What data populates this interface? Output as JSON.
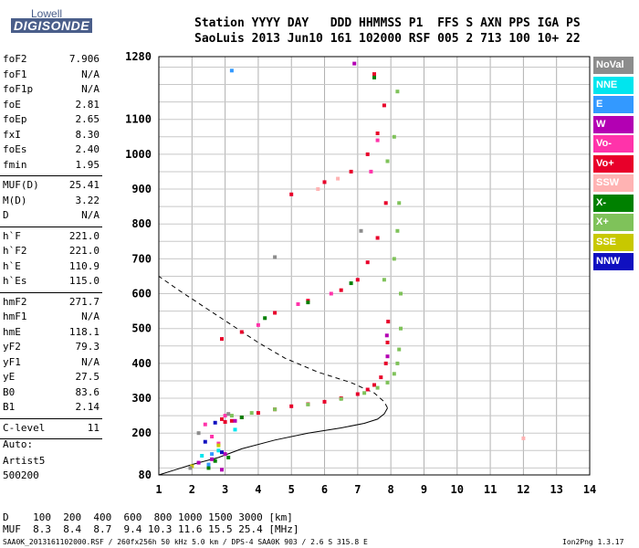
{
  "logo": {
    "line1": "Lowell",
    "line2": "DIGISONDE"
  },
  "header": {
    "line1": "Station YYYY DAY   DDD HHMMSS P1  FFS S AXN PPS IGA PS",
    "line2": "SaoLuis 2013 Jun10 161 102000 RSF 005 2 713 100 10+ 22"
  },
  "params_group1": [
    {
      "k": "foF2",
      "v": "7.906"
    },
    {
      "k": "foF1",
      "v": "N/A"
    },
    {
      "k": "foF1p",
      "v": "N/A"
    },
    {
      "k": "foE",
      "v": "2.81"
    },
    {
      "k": "foEp",
      "v": "2.65"
    },
    {
      "k": "fxI",
      "v": "8.30"
    },
    {
      "k": "foEs",
      "v": "2.40"
    },
    {
      "k": "fmin",
      "v": "1.95"
    }
  ],
  "params_group2": [
    {
      "k": "MUF(D)",
      "v": "25.41"
    },
    {
      "k": "M(D)",
      "v": "3.22"
    },
    {
      "k": "D",
      "v": "N/A"
    }
  ],
  "params_group3": [
    {
      "k": "h`F",
      "v": "221.0"
    },
    {
      "k": "h`F2",
      "v": "221.0"
    },
    {
      "k": "h`E",
      "v": "110.9"
    },
    {
      "k": "h`Es",
      "v": "115.0"
    }
  ],
  "params_group4": [
    {
      "k": "hmF2",
      "v": "271.7"
    },
    {
      "k": "hmF1",
      "v": "N/A"
    },
    {
      "k": "hmE",
      "v": "118.1"
    },
    {
      "k": "yF2",
      "v": "79.3"
    },
    {
      "k": "yF1",
      "v": "N/A"
    },
    {
      "k": "yE",
      "v": "27.5"
    },
    {
      "k": "B0",
      "v": "83.6"
    },
    {
      "k": "B1",
      "v": "2.14"
    }
  ],
  "params_group5": [
    {
      "k": "C-level",
      "v": "11"
    }
  ],
  "left_footer": {
    "auto": "Auto:",
    "artist": "Artist5",
    "version": "500200"
  },
  "muf_table": {
    "line1": "D    100  200  400  600  800 1000 1500 3000 [km]",
    "line2": "MUF  8.3  8.4  8.7  9.4 10.3 11.6 15.5 25.4 [MHz]"
  },
  "footer": {
    "left": "SAA0K_2013161102000.RSF / 260fx256h 50 kHz 5.0 km / DPS-4 SAA0K 903 / 2.6 S 315.8 E",
    "right": "Ion2Png 1.3.17"
  },
  "legend": [
    {
      "label": "NoVal",
      "color": "#8c8c8c"
    },
    {
      "label": "NNE",
      "color": "#00e5ee"
    },
    {
      "label": "E",
      "color": "#3399ff"
    },
    {
      "label": "W",
      "color": "#b300b3"
    },
    {
      "label": "Vo-",
      "color": "#ff33aa"
    },
    {
      "label": "Vo+",
      "color": "#e8002a"
    },
    {
      "label": "SSW",
      "color": "#ffb3b3"
    },
    {
      "label": "X-",
      "color": "#008000"
    },
    {
      "label": "X+",
      "color": "#7fc25a"
    },
    {
      "label": "SSE",
      "color": "#c8c800"
    },
    {
      "label": "NNW",
      "color": "#1010c0"
    }
  ],
  "chart_data": {
    "type": "scatter",
    "title": "",
    "xlabel": "",
    "ylabel": "",
    "xlim": [
      1,
      14
    ],
    "ylim": [
      80,
      1280
    ],
    "x_ticks": [
      1,
      2,
      3,
      4,
      5,
      6,
      7,
      8,
      9,
      10,
      11,
      12,
      13,
      14
    ],
    "y_ticks": [
      80,
      200,
      300,
      400,
      500,
      600,
      700,
      800,
      900,
      1000,
      1100,
      1280
    ],
    "grid": true,
    "series": [
      {
        "name": "Vo+",
        "color": "#e8002a",
        "points": [
          [
            2.9,
            240
          ],
          [
            3.0,
            232
          ],
          [
            3.2,
            235
          ],
          [
            3.5,
            245
          ],
          [
            4.0,
            258
          ],
          [
            4.5,
            268
          ],
          [
            5.0,
            277
          ],
          [
            5.5,
            283
          ],
          [
            6.0,
            290
          ],
          [
            6.5,
            300
          ],
          [
            7.0,
            312
          ],
          [
            7.3,
            325
          ],
          [
            7.5,
            338
          ],
          [
            7.7,
            360
          ],
          [
            7.85,
            400
          ],
          [
            7.9,
            460
          ],
          [
            7.92,
            520
          ],
          [
            2.9,
            470
          ],
          [
            3.5,
            490
          ],
          [
            4.5,
            545
          ],
          [
            5.5,
            580
          ],
          [
            6.5,
            610
          ],
          [
            7.0,
            640
          ],
          [
            7.3,
            690
          ],
          [
            7.6,
            760
          ],
          [
            7.85,
            860
          ],
          [
            5.0,
            885
          ],
          [
            6.0,
            920
          ],
          [
            6.8,
            950
          ],
          [
            7.3,
            1000
          ],
          [
            7.6,
            1060
          ],
          [
            7.8,
            1140
          ],
          [
            7.5,
            1230
          ]
        ]
      },
      {
        "name": "X+",
        "color": "#7fc25a",
        "points": [
          [
            3.2,
            250
          ],
          [
            3.8,
            258
          ],
          [
            4.5,
            268
          ],
          [
            5.5,
            282
          ],
          [
            6.5,
            298
          ],
          [
            7.2,
            315
          ],
          [
            7.6,
            330
          ],
          [
            7.9,
            345
          ],
          [
            8.1,
            370
          ],
          [
            8.2,
            400
          ],
          [
            8.25,
            440
          ],
          [
            8.3,
            500
          ],
          [
            8.3,
            600
          ],
          [
            7.8,
            640
          ],
          [
            8.1,
            700
          ],
          [
            8.2,
            780
          ],
          [
            8.25,
            860
          ],
          [
            7.9,
            980
          ],
          [
            8.1,
            1050
          ],
          [
            8.2,
            1180
          ]
        ]
      },
      {
        "name": "Vo-",
        "color": "#ff33aa",
        "points": [
          [
            2.4,
            225
          ],
          [
            2.6,
            190
          ],
          [
            2.8,
            170
          ],
          [
            3.0,
            250
          ],
          [
            4.0,
            510
          ],
          [
            5.2,
            570
          ],
          [
            6.2,
            600
          ],
          [
            7.4,
            950
          ],
          [
            7.6,
            1040
          ]
        ]
      },
      {
        "name": "X-",
        "color": "#008000",
        "points": [
          [
            2.5,
            100
          ],
          [
            2.7,
            120
          ],
          [
            3.1,
            130
          ],
          [
            3.5,
            245
          ],
          [
            4.2,
            530
          ],
          [
            5.5,
            575
          ],
          [
            6.8,
            630
          ],
          [
            7.5,
            1220
          ]
        ]
      },
      {
        "name": "W",
        "color": "#b300b3",
        "points": [
          [
            2.2,
            115
          ],
          [
            2.6,
            125
          ],
          [
            2.9,
            95
          ],
          [
            3.0,
            140
          ],
          [
            3.3,
            235
          ],
          [
            7.9,
            420
          ],
          [
            7.88,
            480
          ],
          [
            6.9,
            1260
          ]
        ]
      },
      {
        "name": "NNE",
        "color": "#00e5ee",
        "points": [
          [
            2.3,
            135
          ],
          [
            2.8,
            150
          ],
          [
            3.3,
            210
          ]
        ]
      },
      {
        "name": "E",
        "color": "#3399ff",
        "points": [
          [
            2.5,
            110
          ],
          [
            3.2,
            1240
          ],
          [
            2.6,
            140
          ]
        ]
      },
      {
        "name": "SSE",
        "color": "#c8c800",
        "points": [
          [
            2.0,
            105
          ],
          [
            2.8,
            165
          ]
        ]
      },
      {
        "name": "NNW",
        "color": "#1010c0",
        "points": [
          [
            2.4,
            175
          ],
          [
            2.9,
            145
          ],
          [
            2.7,
            230
          ]
        ]
      },
      {
        "name": "NoVal",
        "color": "#8c8c8c",
        "points": [
          [
            2.2,
            200
          ],
          [
            3.1,
            255
          ],
          [
            4.5,
            705
          ],
          [
            7.1,
            780
          ],
          [
            1.95,
            100
          ]
        ]
      },
      {
        "name": "SSW",
        "color": "#ffb3b3",
        "points": [
          [
            5.8,
            900
          ],
          [
            6.4,
            930
          ],
          [
            12.0,
            185
          ]
        ]
      }
    ],
    "profile_solid": [
      [
        1.0,
        80
      ],
      [
        1.5,
        95
      ],
      [
        2.0,
        110
      ],
      [
        2.8,
        130
      ],
      [
        3.5,
        155
      ],
      [
        4.5,
        180
      ],
      [
        5.5,
        200
      ],
      [
        6.5,
        215
      ],
      [
        7.2,
        228
      ],
      [
        7.6,
        240
      ],
      [
        7.8,
        255
      ],
      [
        7.9,
        272
      ]
    ],
    "profile_dashed": [
      [
        7.9,
        272
      ],
      [
        7.8,
        290
      ],
      [
        7.5,
        315
      ],
      [
        6.8,
        345
      ],
      [
        5.8,
        375
      ],
      [
        4.8,
        415
      ],
      [
        4.0,
        460
      ],
      [
        3.2,
        510
      ],
      [
        2.4,
        560
      ],
      [
        1.6,
        610
      ],
      [
        1.0,
        650
      ]
    ]
  }
}
